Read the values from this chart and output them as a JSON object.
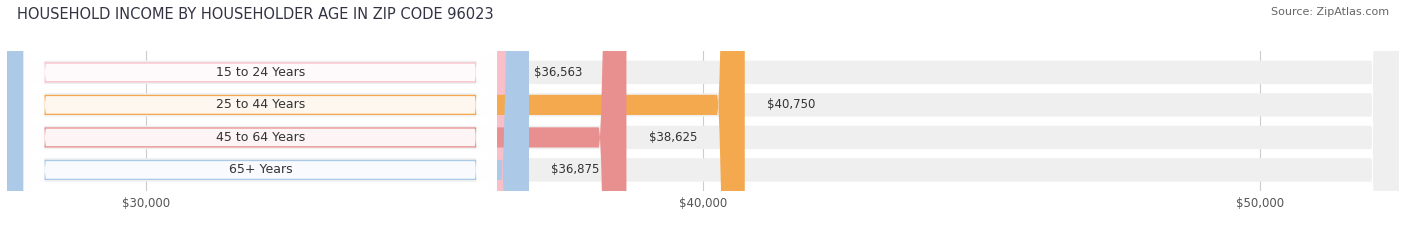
{
  "title": "HOUSEHOLD INCOME BY HOUSEHOLDER AGE IN ZIP CODE 96023",
  "source": "Source: ZipAtlas.com",
  "categories": [
    "15 to 24 Years",
    "25 to 44 Years",
    "45 to 64 Years",
    "65+ Years"
  ],
  "values": [
    36563,
    40750,
    38625,
    36875
  ],
  "bar_colors": [
    "#f9bfc9",
    "#f5a94e",
    "#e89090",
    "#adc9e8"
  ],
  "bar_bg_color": "#efefef",
  "xmin": 27500,
  "xmax": 52500,
  "xticks": [
    30000,
    40000,
    50000
  ],
  "xtick_labels": [
    "$30,000",
    "$40,000",
    "$50,000"
  ],
  "title_fontsize": 10.5,
  "source_fontsize": 8,
  "label_fontsize": 9,
  "value_fontsize": 8.5,
  "bar_height": 0.62,
  "background_color": "#ffffff"
}
